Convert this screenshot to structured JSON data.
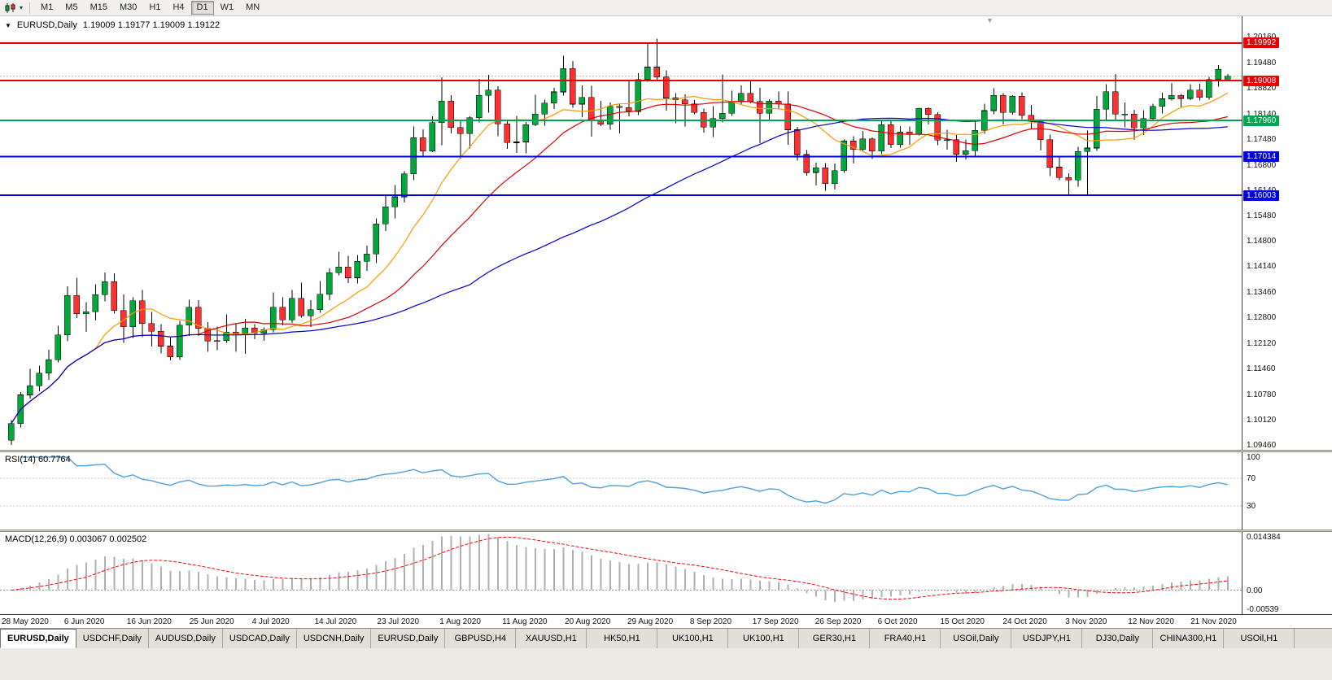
{
  "colors": {
    "bull": "#00a83c",
    "bear": "#ff3030",
    "wick": "#000000",
    "ma_fast": "#ff9900",
    "ma_mid": "#dd0000",
    "ma_slow": "#0000cc",
    "rsi_line": "#4f9fd8",
    "rsi_level": "#c8c8c8",
    "macd_bar": "#b0b0b0",
    "macd_signal": "#ff0000",
    "macd_zero": "#999999",
    "bid_line": "#b4b4b4"
  },
  "toolbar": {
    "timeframes": [
      {
        "label": "M1",
        "active": false
      },
      {
        "label": "M5",
        "active": false
      },
      {
        "label": "M15",
        "active": false
      },
      {
        "label": "M30",
        "active": false
      },
      {
        "label": "H1",
        "active": false
      },
      {
        "label": "H4",
        "active": false
      },
      {
        "label": "D1",
        "active": true
      },
      {
        "label": "W1",
        "active": false
      },
      {
        "label": "MN",
        "active": false
      }
    ]
  },
  "main_chart_header": {
    "symbol": "EURUSD,Daily",
    "ohlc": "1.19009 1.19177 1.19009 1.19122"
  },
  "rsi_panel": {
    "label": "RSI(14) 60.7764",
    "ticks": [
      {
        "v": 100,
        "label": "100"
      },
      {
        "v": 70,
        "label": "70"
      },
      {
        "v": 30,
        "label": "30"
      }
    ],
    "levels": [
      70,
      30
    ],
    "period": 14
  },
  "macd_panel": {
    "label": "MACD(12,26,9) 0.003067 0.002502",
    "ticks": [
      {
        "v": 0.014384,
        "label": "0.014384"
      },
      {
        "v": 0,
        "label": "0.00"
      },
      {
        "v": -0.00539,
        "label": "-0.00539"
      }
    ],
    "ylim": [
      -0.00539,
      0.014384
    ],
    "params": [
      12,
      26,
      9
    ]
  },
  "chart_data": {
    "type": "candlestick",
    "title": "EURUSD,Daily",
    "ylim": [
      1.0946,
      1.2016
    ],
    "y_ticks": [
      {
        "v": 1.2016,
        "label": "1.20160"
      },
      {
        "v": 1.1948,
        "label": "1.19480"
      },
      {
        "v": 1.1882,
        "label": "1.18820"
      },
      {
        "v": 1.1814,
        "label": "1.18140"
      },
      {
        "v": 1.1748,
        "label": "1.17480"
      },
      {
        "v": 1.168,
        "label": "1.16800"
      },
      {
        "v": 1.1614,
        "label": "1.16140"
      },
      {
        "v": 1.1548,
        "label": "1.15480"
      },
      {
        "v": 1.148,
        "label": "1.14800"
      },
      {
        "v": 1.1414,
        "label": "1.14140"
      },
      {
        "v": 1.1346,
        "label": "1.13460"
      },
      {
        "v": 1.128,
        "label": "1.12800"
      },
      {
        "v": 1.1212,
        "label": "1.12120"
      },
      {
        "v": 1.1146,
        "label": "1.11460"
      },
      {
        "v": 1.1078,
        "label": "1.10780"
      },
      {
        "v": 1.1012,
        "label": "1.10120"
      },
      {
        "v": 1.0946,
        "label": "1.09460"
      }
    ],
    "levels": [
      {
        "price": 1.19992,
        "label": "1.19992",
        "color": "#e60000"
      },
      {
        "price": 1.19008,
        "label": "1.19008",
        "color": "#e60000"
      },
      {
        "price": 1.1796,
        "label": "1.17960",
        "color": "#00a550"
      },
      {
        "price": 1.17014,
        "label": "1.17014",
        "color": "#0000e6"
      },
      {
        "price": 1.16003,
        "label": "1.16003",
        "color": "#0000e6"
      }
    ],
    "bid_price": 1.19122,
    "date_labels": [
      "28 May 2020",
      "6 Jun 2020",
      "16 Jun 2020",
      "25 Jun 2020",
      "4 Jul 2020",
      "14 Jul 2020",
      "23 Jul 2020",
      "1 Aug 2020",
      "11 Aug 2020",
      "20 Aug 2020",
      "29 Aug 2020",
      "8 Sep 2020",
      "17 Sep 2020",
      "26 Sep 2020",
      "6 Oct 2020",
      "15 Oct 2020",
      "24 Oct 2020",
      "3 Nov 2020",
      "12 Nov 2020",
      "21 Nov 2020"
    ],
    "overlays": [
      {
        "name": "SMA(10)",
        "color_key": "ma_fast"
      },
      {
        "name": "SMA(21)",
        "color_key": "ma_mid"
      },
      {
        "name": "SMA(50)",
        "color_key": "ma_slow"
      }
    ],
    "sub_charts": [
      {
        "type": "line",
        "name": "RSI(14)",
        "current": 60.7764,
        "range": [
          0,
          100
        ]
      },
      {
        "type": "bar+line",
        "name": "MACD(12,26,9)",
        "macd": 0.003067,
        "signal": 0.002502
      }
    ],
    "candles": [
      [
        1.0958,
        1.1011,
        1.0946,
        1.1002
      ],
      [
        1.1002,
        1.1085,
        1.0992,
        1.1077
      ],
      [
        1.1077,
        1.1145,
        1.1068,
        1.1101
      ],
      [
        1.1101,
        1.1154,
        1.1087,
        1.1134
      ],
      [
        1.1134,
        1.1195,
        1.1116,
        1.1169
      ],
      [
        1.1169,
        1.1258,
        1.1162,
        1.1234
      ],
      [
        1.1234,
        1.1362,
        1.1218,
        1.1338
      ],
      [
        1.1338,
        1.1384,
        1.1278,
        1.129
      ],
      [
        1.129,
        1.132,
        1.1242,
        1.1295
      ],
      [
        1.1295,
        1.1367,
        1.1272,
        1.134
      ],
      [
        1.134,
        1.1398,
        1.1322,
        1.1374
      ],
      [
        1.1374,
        1.1396,
        1.129,
        1.1298
      ],
      [
        1.1298,
        1.134,
        1.1213,
        1.1256
      ],
      [
        1.1256,
        1.1333,
        1.1226,
        1.1324
      ],
      [
        1.1324,
        1.1352,
        1.1228,
        1.1264
      ],
      [
        1.1264,
        1.1294,
        1.1204,
        1.1244
      ],
      [
        1.1244,
        1.1262,
        1.1186,
        1.1205
      ],
      [
        1.1205,
        1.1227,
        1.1168,
        1.1177
      ],
      [
        1.1177,
        1.1271,
        1.1169,
        1.126
      ],
      [
        1.126,
        1.1326,
        1.1232,
        1.1307
      ],
      [
        1.1307,
        1.1325,
        1.1232,
        1.1251
      ],
      [
        1.1251,
        1.1268,
        1.119,
        1.1218
      ],
      [
        1.1218,
        1.1256,
        1.1194,
        1.1219
      ],
      [
        1.1219,
        1.1288,
        1.1214,
        1.1242
      ],
      [
        1.1242,
        1.1262,
        1.119,
        1.1234
      ],
      [
        1.1234,
        1.1276,
        1.1185,
        1.1252
      ],
      [
        1.1252,
        1.1262,
        1.1223,
        1.1239
      ],
      [
        1.1239,
        1.1254,
        1.1219,
        1.1248
      ],
      [
        1.1248,
        1.1346,
        1.1241,
        1.1307
      ],
      [
        1.1307,
        1.1333,
        1.1259,
        1.1274
      ],
      [
        1.1274,
        1.1352,
        1.1266,
        1.133
      ],
      [
        1.133,
        1.1371,
        1.128,
        1.1284
      ],
      [
        1.1284,
        1.1325,
        1.1255,
        1.13
      ],
      [
        1.13,
        1.1375,
        1.1292,
        1.1341
      ],
      [
        1.1341,
        1.1409,
        1.1325,
        1.1397
      ],
      [
        1.1397,
        1.1452,
        1.139,
        1.1412
      ],
      [
        1.1412,
        1.1442,
        1.137,
        1.1384
      ],
      [
        1.1384,
        1.1444,
        1.1369,
        1.1427
      ],
      [
        1.1427,
        1.1468,
        1.1402,
        1.1446
      ],
      [
        1.1446,
        1.154,
        1.1422,
        1.1525
      ],
      [
        1.1525,
        1.1601,
        1.1507,
        1.157
      ],
      [
        1.157,
        1.1627,
        1.154,
        1.1596
      ],
      [
        1.1596,
        1.1663,
        1.1581,
        1.1656
      ],
      [
        1.1656,
        1.1781,
        1.164,
        1.1751
      ],
      [
        1.1751,
        1.1773,
        1.17,
        1.1716
      ],
      [
        1.1716,
        1.1807,
        1.1713,
        1.1791
      ],
      [
        1.1791,
        1.1909,
        1.1731,
        1.1847
      ],
      [
        1.1847,
        1.1863,
        1.1762,
        1.1778
      ],
      [
        1.1778,
        1.1797,
        1.1696,
        1.1762
      ],
      [
        1.1762,
        1.1807,
        1.1723,
        1.1803
      ],
      [
        1.1803,
        1.1905,
        1.1791,
        1.1862
      ],
      [
        1.1862,
        1.1916,
        1.1817,
        1.1876
      ],
      [
        1.1876,
        1.1886,
        1.1755,
        1.1787
      ],
      [
        1.1787,
        1.1798,
        1.1722,
        1.1738
      ],
      [
        1.1738,
        1.1808,
        1.1711,
        1.174
      ],
      [
        1.174,
        1.1792,
        1.171,
        1.1785
      ],
      [
        1.1785,
        1.1864,
        1.1782,
        1.1813
      ],
      [
        1.1813,
        1.1851,
        1.1783,
        1.1842
      ],
      [
        1.1842,
        1.1882,
        1.1826,
        1.1871
      ],
      [
        1.1871,
        1.1966,
        1.1862,
        1.1932
      ],
      [
        1.1932,
        1.1952,
        1.183,
        1.1839
      ],
      [
        1.1839,
        1.1888,
        1.1805,
        1.1857
      ],
      [
        1.1857,
        1.1887,
        1.1754,
        1.1796
      ],
      [
        1.1796,
        1.1848,
        1.1782,
        1.1786
      ],
      [
        1.1786,
        1.1843,
        1.1772,
        1.1833
      ],
      [
        1.1833,
        1.1841,
        1.1762,
        1.183
      ],
      [
        1.183,
        1.1899,
        1.1807,
        1.182
      ],
      [
        1.182,
        1.192,
        1.181,
        1.1903
      ],
      [
        1.1903,
        1.1997,
        1.1898,
        1.1936
      ],
      [
        1.1936,
        1.2011,
        1.1901,
        1.191
      ],
      [
        1.191,
        1.1928,
        1.1822,
        1.1855
      ],
      [
        1.1855,
        1.1868,
        1.1789,
        1.185
      ],
      [
        1.185,
        1.1865,
        1.1781,
        1.184
      ],
      [
        1.184,
        1.185,
        1.1812,
        1.1817
      ],
      [
        1.1817,
        1.1827,
        1.1765,
        1.1779
      ],
      [
        1.1779,
        1.1834,
        1.1753,
        1.1801
      ],
      [
        1.1801,
        1.1917,
        1.1791,
        1.1815
      ],
      [
        1.1815,
        1.1874,
        1.1808,
        1.1845
      ],
      [
        1.1845,
        1.1888,
        1.1838,
        1.1867
      ],
      [
        1.1867,
        1.19,
        1.1841,
        1.1846
      ],
      [
        1.1846,
        1.1882,
        1.1737,
        1.1815
      ],
      [
        1.1815,
        1.1852,
        1.1797,
        1.1847
      ],
      [
        1.1847,
        1.1872,
        1.1827,
        1.184
      ],
      [
        1.184,
        1.1872,
        1.1732,
        1.1772
      ],
      [
        1.1772,
        1.1779,
        1.1691,
        1.1707
      ],
      [
        1.1707,
        1.1719,
        1.1651,
        1.166
      ],
      [
        1.166,
        1.1686,
        1.1626,
        1.1672
      ],
      [
        1.1672,
        1.1685,
        1.1612,
        1.1631
      ],
      [
        1.1631,
        1.1683,
        1.1615,
        1.1665
      ],
      [
        1.1665,
        1.1746,
        1.1659,
        1.1742
      ],
      [
        1.1742,
        1.1755,
        1.1684,
        1.172
      ],
      [
        1.172,
        1.1769,
        1.1717,
        1.1748
      ],
      [
        1.1748,
        1.1752,
        1.1695,
        1.1716
      ],
      [
        1.1716,
        1.1797,
        1.1708,
        1.1785
      ],
      [
        1.1785,
        1.1798,
        1.1724,
        1.1733
      ],
      [
        1.1733,
        1.1782,
        1.1725,
        1.1766
      ],
      [
        1.1766,
        1.1781,
        1.1733,
        1.176
      ],
      [
        1.176,
        1.183,
        1.1757,
        1.1828
      ],
      [
        1.1828,
        1.1831,
        1.1786,
        1.1812
      ],
      [
        1.1812,
        1.1818,
        1.1731,
        1.1745
      ],
      [
        1.1745,
        1.1772,
        1.172,
        1.1746
      ],
      [
        1.1746,
        1.1758,
        1.1688,
        1.1708
      ],
      [
        1.1708,
        1.1746,
        1.1694,
        1.1717
      ],
      [
        1.1717,
        1.1794,
        1.1703,
        1.177
      ],
      [
        1.177,
        1.184,
        1.1761,
        1.1822
      ],
      [
        1.1822,
        1.1881,
        1.1812,
        1.1862
      ],
      [
        1.1862,
        1.1868,
        1.1786,
        1.1817
      ],
      [
        1.1817,
        1.1863,
        1.1811,
        1.186
      ],
      [
        1.186,
        1.187,
        1.18,
        1.181
      ],
      [
        1.181,
        1.1837,
        1.1774,
        1.1795
      ],
      [
        1.1795,
        1.18,
        1.1718,
        1.1746
      ],
      [
        1.1746,
        1.1759,
        1.165,
        1.1674
      ],
      [
        1.1674,
        1.1704,
        1.164,
        1.1647
      ],
      [
        1.1647,
        1.1658,
        1.1603,
        1.164
      ],
      [
        1.164,
        1.1727,
        1.1623,
        1.1715
      ],
      [
        1.1715,
        1.177,
        1.1603,
        1.1724
      ],
      [
        1.1724,
        1.186,
        1.1717,
        1.1826
      ],
      [
        1.1826,
        1.1891,
        1.1795,
        1.1872
      ],
      [
        1.1872,
        1.1918,
        1.1795,
        1.1813
      ],
      [
        1.1813,
        1.1843,
        1.1778,
        1.1813
      ],
      [
        1.1813,
        1.1824,
        1.1745,
        1.1777
      ],
      [
        1.1777,
        1.1823,
        1.1758,
        1.1801
      ],
      [
        1.1801,
        1.184,
        1.1799,
        1.1833
      ],
      [
        1.1833,
        1.1869,
        1.1815,
        1.1853
      ],
      [
        1.1853,
        1.1894,
        1.1849,
        1.1862
      ],
      [
        1.1862,
        1.1866,
        1.1829,
        1.1854
      ],
      [
        1.1854,
        1.1891,
        1.185,
        1.1876
      ],
      [
        1.1876,
        1.1892,
        1.1849,
        1.1857
      ],
      [
        1.1857,
        1.191,
        1.1851,
        1.1903
      ],
      [
        1.1903,
        1.1941,
        1.1885,
        1.193
      ],
      [
        1.19009,
        1.19177,
        1.19009,
        1.19122
      ]
    ]
  },
  "tabs": [
    {
      "label": "EURUSD,Daily",
      "active": true
    },
    {
      "label": "USDCHF,Daily",
      "active": false
    },
    {
      "label": "AUDUSD,Daily",
      "active": false
    },
    {
      "label": "USDCAD,Daily",
      "active": false
    },
    {
      "label": "USDCNH,Daily",
      "active": false
    },
    {
      "label": "EURUSD,Daily",
      "active": false
    },
    {
      "label": "GBPUSD,H4",
      "active": false
    },
    {
      "label": "XAUUSD,H1",
      "active": false
    },
    {
      "label": "HK50,H1",
      "active": false
    },
    {
      "label": "UK100,H1",
      "active": false
    },
    {
      "label": "UK100,H1",
      "active": false
    },
    {
      "label": "GER30,H1",
      "active": false
    },
    {
      "label": "FRA40,H1",
      "active": false
    },
    {
      "label": "USOil,Daily",
      "active": false
    },
    {
      "label": "USDJPY,H1",
      "active": false
    },
    {
      "label": "DJ30,Daily",
      "active": false
    },
    {
      "label": "CHINA300,H1",
      "active": false
    },
    {
      "label": "USOil,H1",
      "active": false
    }
  ]
}
